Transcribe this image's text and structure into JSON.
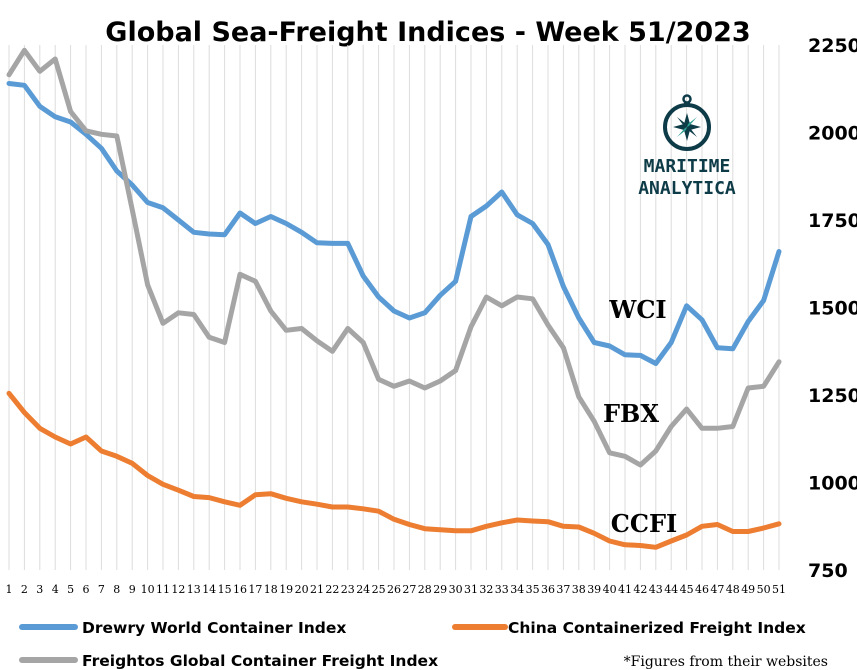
{
  "chart_data": {
    "type": "line",
    "title": "Global Sea-Freight Indices -  Week 51/2023",
    "xlabel": "",
    "ylabel": "",
    "x": [
      1,
      2,
      3,
      4,
      5,
      6,
      7,
      8,
      9,
      10,
      11,
      12,
      13,
      14,
      15,
      16,
      17,
      18,
      19,
      20,
      21,
      22,
      23,
      24,
      25,
      26,
      27,
      28,
      29,
      30,
      31,
      32,
      33,
      34,
      35,
      36,
      37,
      38,
      39,
      40,
      41,
      42,
      43,
      44,
      45,
      46,
      47,
      48,
      49,
      50,
      51
    ],
    "xlim": [
      1,
      51
    ],
    "ylim": [
      750,
      2250
    ],
    "yticks": [
      750,
      1000,
      1250,
      1500,
      1750,
      2000,
      2250
    ],
    "grid": "vertical",
    "legend": "bottom",
    "series": [
      {
        "name": "Drewry World Container Index",
        "label": "WCI",
        "color": "#5b9bd5",
        "values": [
          2140,
          2135,
          2075,
          2045,
          2030,
          1995,
          1955,
          1890,
          1850,
          1800,
          1785,
          1750,
          1715,
          1710,
          1708,
          1770,
          1740,
          1760,
          1740,
          1715,
          1685,
          1683,
          1683,
          1590,
          1530,
          1490,
          1470,
          1485,
          1535,
          1575,
          1760,
          1790,
          1830,
          1765,
          1740,
          1680,
          1560,
          1470,
          1400,
          1390,
          1365,
          1363,
          1340,
          1400,
          1505,
          1465,
          1385,
          1382,
          1460,
          1520,
          1660
        ]
      },
      {
        "name": "China Containerized Freight Index",
        "label": "CCFI",
        "color": "#ed7d31",
        "values": [
          1255,
          1200,
          1155,
          1130,
          1110,
          1130,
          1090,
          1075,
          1055,
          1020,
          995,
          978,
          960,
          957,
          945,
          935,
          965,
          968,
          955,
          945,
          938,
          930,
          930,
          925,
          918,
          895,
          880,
          868,
          865,
          862,
          862,
          875,
          885,
          893,
          890,
          888,
          875,
          873,
          855,
          833,
          822,
          820,
          815,
          833,
          850,
          875,
          880,
          860,
          860,
          870,
          882
        ]
      },
      {
        "name": "Freightos Global Container Freight Index",
        "label": "FBX",
        "color": "#a5a5a5",
        "values": [
          2165,
          2235,
          2175,
          2210,
          2060,
          2005,
          1995,
          1990,
          1780,
          1565,
          1455,
          1485,
          1480,
          1415,
          1400,
          1595,
          1575,
          1490,
          1435,
          1440,
          1405,
          1375,
          1440,
          1400,
          1295,
          1275,
          1290,
          1270,
          1290,
          1320,
          1445,
          1530,
          1505,
          1530,
          1525,
          1450,
          1385,
          1245,
          1175,
          1085,
          1075,
          1050,
          1090,
          1160,
          1210,
          1155,
          1155,
          1160,
          1270,
          1275,
          1345
        ]
      }
    ]
  },
  "logo": {
    "line1": "MARITIME",
    "line2": "ANALYTICA",
    "icon": "compass-icon"
  },
  "footnote": "*Figures from their websites"
}
